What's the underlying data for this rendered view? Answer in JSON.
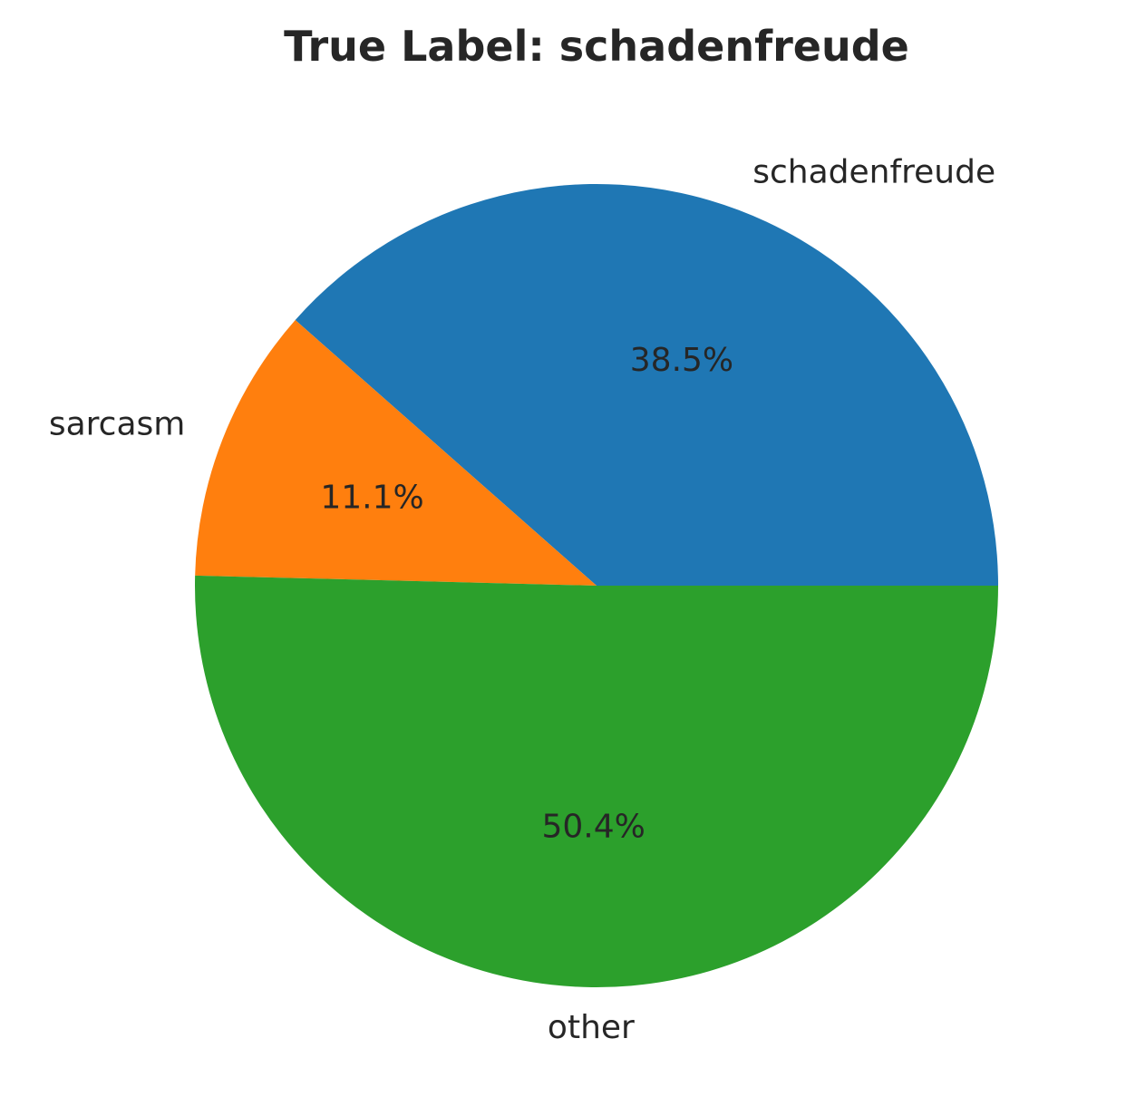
{
  "chart_data": {
    "type": "pie",
    "title": "True Label: schadenfreude",
    "slices": [
      {
        "label": "schadenfreude",
        "value": 38.5,
        "value_label": "38.5%",
        "color": "#1f77b4"
      },
      {
        "label": "sarcasm",
        "value": 11.1,
        "value_label": "11.1%",
        "color": "#ff7f0e"
      },
      {
        "label": "other",
        "value": 50.4,
        "value_label": "50.4%",
        "color": "#2ca02c"
      }
    ],
    "start_angle_deg": 0,
    "direction": "counterclockwise",
    "legend": "none"
  }
}
